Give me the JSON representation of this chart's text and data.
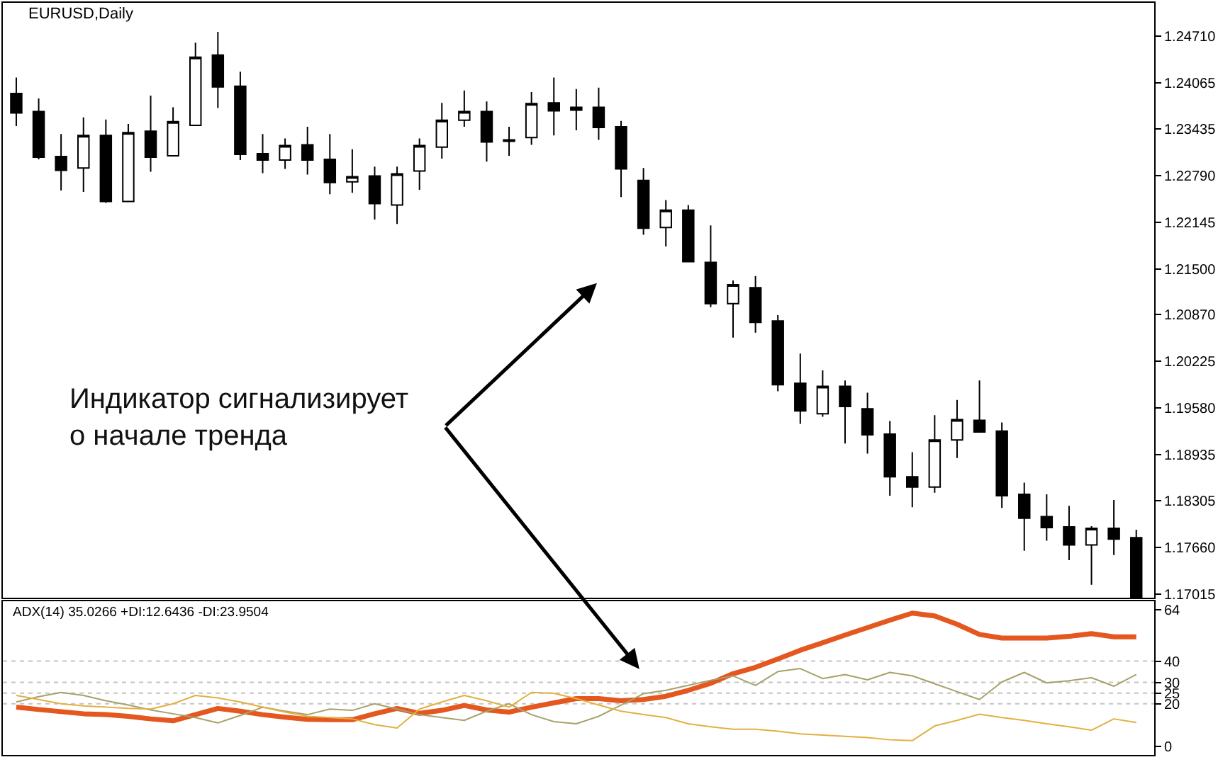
{
  "chart_data": [
    {
      "type": "candlestick",
      "title": "EURUSD,Daily",
      "categories": [
        null,
        null,
        null,
        null,
        null,
        null,
        null,
        null,
        null,
        null,
        null,
        null,
        null,
        null,
        null,
        null,
        null,
        null,
        null,
        null,
        null,
        null,
        null,
        null,
        null,
        null,
        null,
        null,
        null,
        null,
        null,
        null,
        null,
        null,
        null,
        null,
        null,
        null,
        null,
        null,
        null,
        null,
        null,
        null,
        null,
        null,
        null,
        null,
        null,
        null,
        null
      ],
      "ohlc": [
        [
          1.2392,
          1.2414,
          1.2347,
          1.2365
        ],
        [
          1.2367,
          1.2385,
          1.2301,
          1.2304
        ],
        [
          1.2305,
          1.2336,
          1.2258,
          1.2286
        ],
        [
          1.2289,
          1.2359,
          1.2256,
          1.2334
        ],
        [
          1.2334,
          1.2356,
          1.2241,
          1.2243
        ],
        [
          1.2243,
          1.235,
          1.2242,
          1.2338
        ],
        [
          1.234,
          1.2389,
          1.2284,
          1.2304
        ],
        [
          1.2306,
          1.2373,
          1.2305,
          1.2353
        ],
        [
          1.2348,
          1.2462,
          1.2347,
          1.2442
        ],
        [
          1.2445,
          1.2477,
          1.2372,
          1.2401
        ],
        [
          1.2402,
          1.2422,
          1.23,
          1.2308
        ],
        [
          1.2309,
          1.2336,
          1.2282,
          1.23
        ],
        [
          1.23,
          1.233,
          1.2288,
          1.232
        ],
        [
          1.2321,
          1.2346,
          1.228,
          1.23
        ],
        [
          1.2301,
          1.2336,
          1.2253,
          1.2269
        ],
        [
          1.227,
          1.2315,
          1.2255,
          1.2277
        ],
        [
          1.2278,
          1.2291,
          1.2218,
          1.224
        ],
        [
          1.2238,
          1.2291,
          1.2212,
          1.2281
        ],
        [
          1.2285,
          1.233,
          1.2259,
          1.232
        ],
        [
          1.2318,
          1.2379,
          1.2302,
          1.2355
        ],
        [
          1.2355,
          1.2396,
          1.2346,
          1.2367
        ],
        [
          1.2367,
          1.2381,
          1.2298,
          1.2325
        ],
        [
          1.2328,
          1.2346,
          1.2306,
          1.2326
        ],
        [
          1.2331,
          1.2394,
          1.2321,
          1.2378
        ],
        [
          1.2379,
          1.2414,
          1.2334,
          1.2368
        ],
        [
          1.2369,
          1.2398,
          1.2341,
          1.2373
        ],
        [
          1.2373,
          1.24,
          1.2328,
          1.2345
        ],
        [
          1.2346,
          1.2354,
          1.2249,
          1.2288
        ],
        [
          1.2272,
          1.2289,
          1.2197,
          1.2206
        ],
        [
          1.2207,
          1.2245,
          1.2181,
          1.2231
        ],
        [
          1.2231,
          1.2238,
          1.2159,
          1.216
        ],
        [
          1.2159,
          1.221,
          1.2097,
          1.2102
        ],
        [
          1.2102,
          1.2134,
          1.2055,
          1.2128
        ],
        [
          1.2124,
          1.214,
          1.2062,
          1.2076
        ],
        [
          1.2078,
          1.2086,
          1.1981,
          1.199
        ],
        [
          1.1992,
          1.2033,
          1.1936,
          1.1954
        ],
        [
          1.195,
          1.201,
          1.1946,
          1.1988
        ],
        [
          1.1988,
          1.1996,
          1.1909,
          1.196
        ],
        [
          1.1957,
          1.1979,
          1.1895,
          1.1921
        ],
        [
          1.1922,
          1.194,
          1.1837,
          1.1863
        ],
        [
          1.1863,
          1.1897,
          1.1821,
          1.1849
        ],
        [
          1.1849,
          1.1948,
          1.1841,
          1.1914
        ],
        [
          1.1914,
          1.1969,
          1.1889,
          1.1942
        ],
        [
          1.1941,
          1.1996,
          1.1924,
          1.1925
        ],
        [
          1.1926,
          1.1938,
          1.182,
          1.1837
        ],
        [
          1.1839,
          1.1855,
          1.1761,
          1.1806
        ],
        [
          1.1808,
          1.1839,
          1.1775,
          1.1793
        ],
        [
          1.1794,
          1.1823,
          1.1748,
          1.1769
        ],
        [
          1.1769,
          1.1795,
          1.1714,
          1.1792
        ],
        [
          1.1792,
          1.1831,
          1.1755,
          1.1777
        ],
        [
          1.1779,
          1.179,
          1.1696,
          1.1697
        ]
      ],
      "color": "#000000",
      "ylim": [
        1.1696,
        1.2517
      ],
      "yticks": [
        {
          "value": 1.2471,
          "label": "1.24710"
        },
        {
          "value": 1.24065,
          "label": "1.24065"
        },
        {
          "value": 1.23435,
          "label": "1.23435"
        },
        {
          "value": 1.2279,
          "label": "1.22790"
        },
        {
          "value": 1.22145,
          "label": "1.22145"
        },
        {
          "value": 1.215,
          "label": "1.21500"
        },
        {
          "value": 1.2087,
          "label": "1.20870"
        },
        {
          "value": 1.20225,
          "label": "1.20225"
        },
        {
          "value": 1.1958,
          "label": "1.19580"
        },
        {
          "value": 1.18935,
          "label": "1.18935"
        },
        {
          "value": 1.18305,
          "label": "1.18305"
        },
        {
          "value": 1.1766,
          "label": "1.17660"
        },
        {
          "value": 1.17015,
          "label": "1.17015"
        }
      ],
      "tick_labels": "y",
      "annotations": [
        "Индикатор сигнализирует\nо начале тренда"
      ]
    },
    {
      "type": "line",
      "title": "ADX(14) 35.0266 +DI:12.6436 -DI:23.9504",
      "categories": [
        null,
        null,
        null,
        null,
        null,
        null,
        null,
        null,
        null,
        null,
        null,
        null,
        null,
        null,
        null,
        null,
        null,
        null,
        null,
        null,
        null,
        null,
        null,
        null,
        null,
        null,
        null,
        null,
        null,
        null,
        null,
        null,
        null,
        null,
        null,
        null,
        null,
        null,
        null,
        null,
        null,
        null,
        null,
        null,
        null,
        null,
        null,
        null,
        null,
        null,
        null
      ],
      "series": [
        {
          "color": "#e4571e",
          "values": [
            18.4,
            17.3,
            16.3,
            15.3,
            14.9,
            14.1,
            12.9,
            12.0,
            14.9,
            17.8,
            16.5,
            14.9,
            13.7,
            12.7,
            12.5,
            12.5,
            15.3,
            17.8,
            15.5,
            16.9,
            19.2,
            17.1,
            16.1,
            18.4,
            20.4,
            22.4,
            22.4,
            21.4,
            22.0,
            23.5,
            26.3,
            29.6,
            34.1,
            37.1,
            41.0,
            45.1,
            48.6,
            52.2,
            55.7,
            59.2,
            62.5,
            61.2,
            57.3,
            52.5,
            50.8,
            50.8,
            50.8,
            51.6,
            52.9,
            51.4,
            51.4
          ]
        },
        {
          "color": "#a6a26a",
          "values": [
            20.8,
            23.3,
            25.3,
            23.9,
            21.4,
            19.4,
            17.1,
            15.3,
            13.5,
            11.0,
            14.5,
            18.4,
            16.5,
            14.9,
            17.5,
            16.9,
            20.0,
            17.5,
            14.9,
            13.5,
            12.2,
            16.5,
            20.0,
            14.9,
            11.6,
            10.6,
            14.1,
            19.4,
            24.7,
            26.3,
            28.6,
            31.0,
            33.1,
            28.6,
            35.1,
            36.5,
            31.8,
            33.7,
            31.2,
            34.7,
            33.1,
            29.4,
            25.7,
            22.0,
            30.2,
            34.7,
            29.8,
            30.8,
            32.2,
            28.2,
            33.7
          ]
        },
        {
          "color": "#e3b041",
          "values": [
            23.9,
            22.0,
            20.0,
            19.0,
            18.4,
            17.8,
            17.5,
            20.0,
            23.9,
            22.7,
            20.8,
            18.4,
            16.1,
            14.1,
            13.5,
            12.9,
            10.2,
            8.6,
            17.5,
            20.8,
            23.9,
            21.4,
            18.4,
            25.3,
            24.9,
            22.4,
            19.4,
            16.5,
            14.9,
            13.5,
            10.6,
            9.2,
            8.0,
            8.0,
            7.1,
            5.9,
            5.3,
            4.7,
            4.1,
            3.1,
            2.7,
            9.6,
            12.2,
            15.1,
            13.5,
            12.2,
            10.6,
            9.2,
            7.6,
            12.9,
            11.2
          ]
        }
      ],
      "ylim": [
        -4,
        68
      ],
      "yticks": [
        0,
        20,
        25,
        30,
        40,
        64
      ],
      "ref_lines": [
        {
          "axis": "y",
          "value": 40,
          "color": "#c4c4c4",
          "line_style": "dashed"
        },
        {
          "axis": "y",
          "value": 30,
          "color": "#c4c4c4",
          "line_style": "dashed"
        },
        {
          "axis": "y",
          "value": 25,
          "color": "#c4c4c4",
          "line_style": "dashed"
        },
        {
          "axis": "y",
          "value": 20,
          "color": "#c4c4c4",
          "line_style": "dashed"
        }
      ],
      "tick_labels": "y"
    }
  ]
}
